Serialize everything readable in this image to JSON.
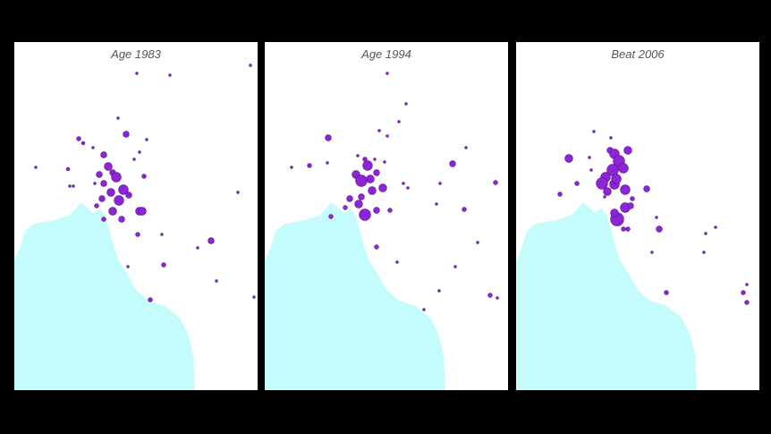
{
  "panels": [
    {
      "title": "Age 1983"
    },
    {
      "title": "Age 1994"
    },
    {
      "title": "Beat 2006"
    }
  ]
}
